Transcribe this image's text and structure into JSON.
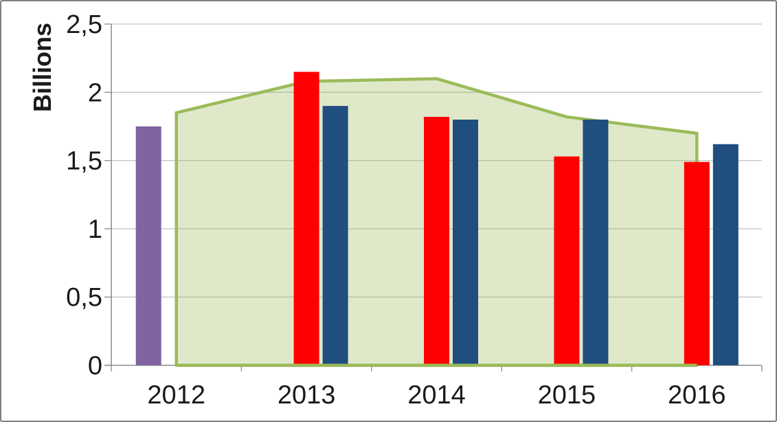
{
  "chart_data": {
    "type": "combo-bar-area",
    "title": "",
    "ylabel": "Billions",
    "xlabel": "",
    "categories": [
      "2012",
      "2013",
      "2014",
      "2015",
      "2016"
    ],
    "y_tick_labels": [
      "0",
      "0,5",
      "1",
      "1,5",
      "2",
      "2,5"
    ],
    "y_tick_values": [
      0,
      0.5,
      1,
      1.5,
      2,
      2.5
    ],
    "ylim": [
      0,
      2.5
    ],
    "grid": true,
    "legend_position": "none",
    "decimal_separator": ",",
    "series": [
      {
        "name": "area-series",
        "type": "area",
        "color": "#9BBB59",
        "fill_opacity": 0.32,
        "values": [
          1.85,
          2.08,
          2.1,
          1.82,
          1.7
        ]
      },
      {
        "name": "purple-bars",
        "type": "bar",
        "color": "#8064A2",
        "values": [
          1.75,
          null,
          null,
          null,
          null
        ]
      },
      {
        "name": "red-bars",
        "type": "bar",
        "color": "#FF0000",
        "values": [
          null,
          2.15,
          1.82,
          1.53,
          1.49
        ]
      },
      {
        "name": "blue-bars",
        "type": "bar",
        "color": "#1F4E7F",
        "values": [
          null,
          1.9,
          1.8,
          1.8,
          1.62
        ]
      }
    ]
  },
  "style": {
    "grid_color": "#C3C3C3",
    "axis_color": "#898989",
    "text_color": "#1A1A1A",
    "frame_border_color": "#7F7F7F",
    "background": "#FFFFFF"
  }
}
